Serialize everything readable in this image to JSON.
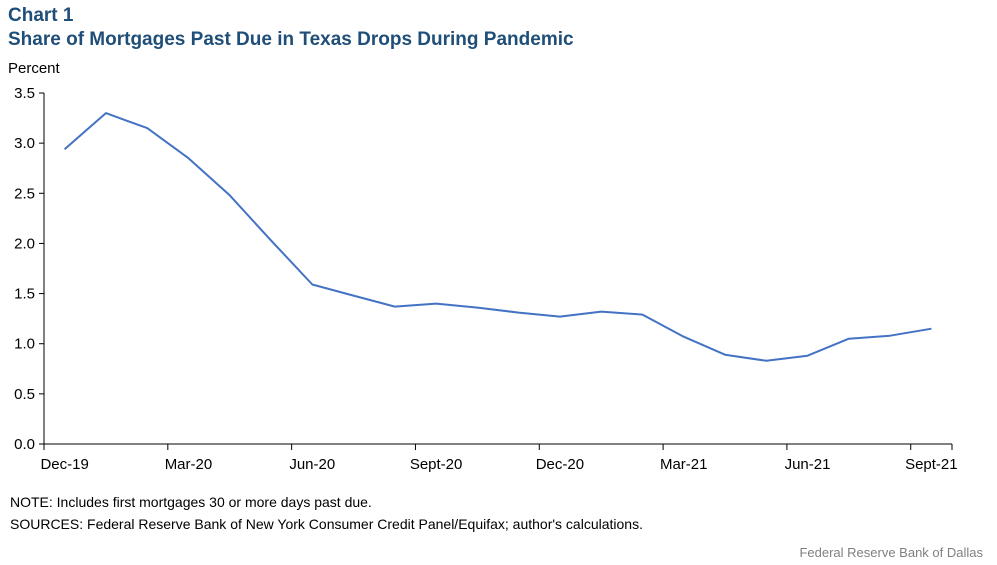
{
  "header": {
    "label": "Chart 1",
    "title": "Share of Mortgages Past Due in Texas Drops During Pandemic"
  },
  "footer": {
    "note": "NOTE: Includes first mortgages 30 or more days past due.",
    "sources": "SOURCES: Federal Reserve Bank of New York Consumer Credit Panel/Equifax; author's calculations.",
    "credit": "Federal  Reserve  Bank of Dallas"
  },
  "colors": {
    "title": "#1f4e79",
    "line": "#4472c4",
    "axis": "#000000",
    "credit": "#7f7f7f"
  },
  "chart_data": {
    "type": "line",
    "ylabel": "Percent",
    "ylim": [
      0,
      3.5
    ],
    "yticks": [
      "0.0",
      "0.5",
      "1.0",
      "1.5",
      "2.0",
      "2.5",
      "3.0",
      "3.5"
    ],
    "xticklabels": [
      "Dec-19",
      "Mar-20",
      "Jun-20",
      "Sept-20",
      "Dec-20",
      "Mar-21",
      "Jun-21",
      "Sept-21"
    ],
    "grid": false,
    "legend": "none",
    "x": [
      "Dec-19",
      "Jan-20",
      "Feb-20",
      "Mar-20",
      "Apr-20",
      "May-20",
      "Jun-20",
      "Jul-20",
      "Aug-20",
      "Sept-20",
      "Oct-20",
      "Nov-20",
      "Dec-20",
      "Jan-21",
      "Feb-21",
      "Mar-21",
      "Apr-21",
      "May-21",
      "Jun-21",
      "Jul-21",
      "Aug-21",
      "Sept-21"
    ],
    "series": [
      {
        "values": [
          2.94,
          3.3,
          3.15,
          2.85,
          2.48,
          2.03,
          1.59,
          1.48,
          1.37,
          1.4,
          1.36,
          1.31,
          1.27,
          1.32,
          1.29,
          1.07,
          0.89,
          0.83,
          0.88,
          1.05,
          1.08,
          1.15
        ]
      }
    ]
  }
}
